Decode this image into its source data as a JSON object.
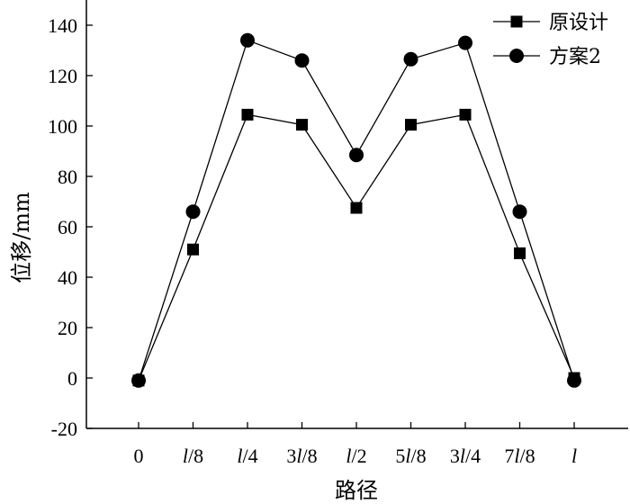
{
  "chart_data": {
    "type": "line",
    "title": "",
    "xlabel": "路径",
    "ylabel": "位移/mm",
    "categories": [
      "0",
      "l/8",
      "l/4",
      "3l/8",
      "l/2",
      "5l/8",
      "3l/4",
      "7l/8",
      "l"
    ],
    "categories_display": [
      {
        "pre": "",
        "it": "",
        "post": "0"
      },
      {
        "pre": "",
        "it": "l",
        "post": "/8"
      },
      {
        "pre": "",
        "it": "l",
        "post": "/4"
      },
      {
        "pre": "3",
        "it": "l",
        "post": "/8"
      },
      {
        "pre": "",
        "it": "l",
        "post": "/2"
      },
      {
        "pre": "5",
        "it": "l",
        "post": "/8"
      },
      {
        "pre": "3",
        "it": "l",
        "post": "/4"
      },
      {
        "pre": "7",
        "it": "l",
        "post": "/8"
      },
      {
        "pre": "",
        "it": "l",
        "post": ""
      }
    ],
    "ylim": [
      -20,
      150
    ],
    "yticks": [
      -20,
      0,
      20,
      40,
      60,
      80,
      100,
      120,
      140
    ],
    "grid": false,
    "legend_position": "top-right",
    "series": [
      {
        "name": "原设计",
        "marker": "square",
        "values": [
          -1,
          51,
          104.5,
          100.5,
          67.5,
          100.5,
          104.5,
          49.5,
          0
        ]
      },
      {
        "name": "方案2",
        "marker": "circle",
        "values": [
          -1,
          66,
          134,
          126,
          88.5,
          126.5,
          133,
          66,
          -1
        ]
      }
    ]
  }
}
